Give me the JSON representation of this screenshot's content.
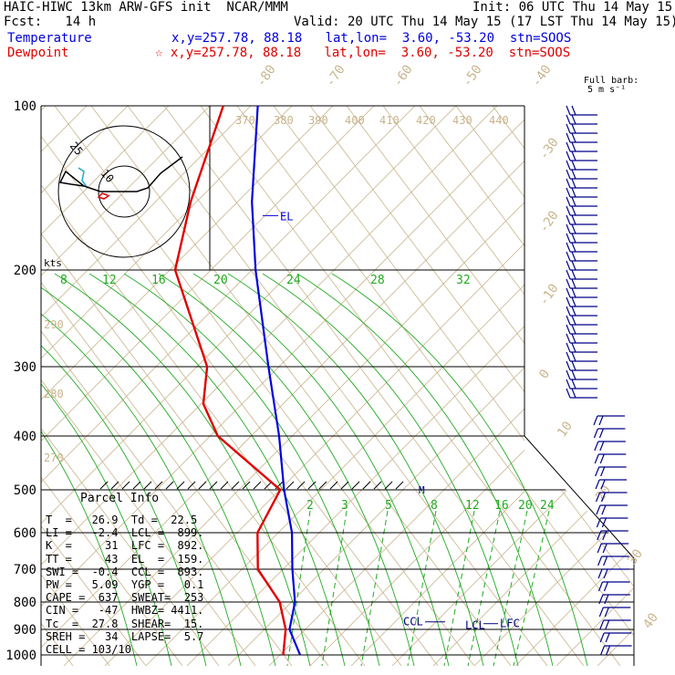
{
  "header": {
    "line1_left": "HAIC-HIWC 13km ARW-GFS init  NCAR/MMM",
    "line1_right": "Init: 06 UTC Thu 14 May 15",
    "line2_left": "Fcst:   14 h",
    "line2_right": "Valid: 20 UTC Thu 14 May 15 (17 LST Thu 14 May 15)",
    "temp_label": "Temperature",
    "temp_info": "x,y=257.78, 88.18   lat,lon=  3.60, -53.20  stn=SOOS",
    "dew_label": "Dewpoint",
    "dew_info": "☆ x,y=257.78, 88.18   lat,lon=  3.60, -53.20  stn=SOOS",
    "barb_title1": "Full barb:",
    "barb_title2": "5 m s⁻¹"
  },
  "colors": {
    "temperature": "#0000dd",
    "dewpoint": "#e00000",
    "isotherm": "#c8b48c",
    "mixing_ratio": "#22aa22",
    "barbs": "#000088"
  },
  "pressure_labels": [
    "100",
    "200",
    "300",
    "400",
    "500",
    "600",
    "700",
    "800",
    "900",
    "1000"
  ],
  "kts_label": "kts",
  "el_label": "EL",
  "lcl_label": "LCL",
  "ccl_label": "CCL",
  "lfc_label": "LFC",
  "m_label": "M",
  "hodograph_labels": [
    "25",
    "10"
  ],
  "parcel_info": {
    "title": "Parcel Info",
    "rows": [
      "T  =   26.9  Td =  22.5",
      "LI =   -2.4  LCL =  899.",
      "K  =     31  LFC =  892.",
      "TT =     43  EL  =  159.",
      "SWI =  -0.4  CCL =  893.",
      "PW =   5.09  YGP =   0.1",
      "CAPE =  637  SWEAT=  253",
      "CIN =   -47  HWBZ= 4411.",
      "Tc  =  27.8  SHEAR=  15.",
      "SREH =   34  LAPSE=  5.7",
      "CELL = 103/10"
    ]
  },
  "chart_data": {
    "type": "skew-t log-p sounding",
    "pressure_levels_hPa": [
      100,
      200,
      300,
      400,
      500,
      600,
      700,
      800,
      900,
      1000
    ],
    "isotherm_labels_C": [
      "-80",
      "-70",
      "-60",
      "-50",
      "-40",
      "-30",
      "-20",
      "-10",
      "0",
      "10",
      "20",
      "30",
      "40"
    ],
    "theta_labels_K": [
      "370",
      "380",
      "390",
      "400",
      "410",
      "420",
      "430",
      "440",
      "290",
      "280",
      "270"
    ],
    "mixing_ratio_labels_upper": [
      "8",
      "12",
      "16",
      "20",
      "24",
      "28",
      "32"
    ],
    "mixing_ratio_labels_lower": [
      "2",
      "3",
      "5",
      "8",
      "12",
      "16",
      "20",
      "24"
    ],
    "series": [
      {
        "name": "Temperature",
        "pressure": [
          1000,
          900,
          800,
          700,
          600,
          500,
          400,
          300,
          200,
          150,
          100
        ],
        "temperature_C": [
          26.9,
          20,
          17,
          11,
          5,
          -4,
          -14,
          -28,
          -47,
          -59,
          -73
        ]
      },
      {
        "name": "Dewpoint",
        "pressure": [
          1000,
          900,
          800,
          700,
          600,
          500,
          400,
          350,
          300,
          200,
          150,
          100
        ],
        "temperature_C": [
          22.5,
          19,
          13,
          2,
          -4,
          -5,
          -30,
          -39,
          -44,
          -68,
          -75,
          -82
        ]
      }
    ],
    "levels": {
      "LCL": 899,
      "LFC": 892,
      "CCL": 893,
      "EL": 159
    }
  }
}
